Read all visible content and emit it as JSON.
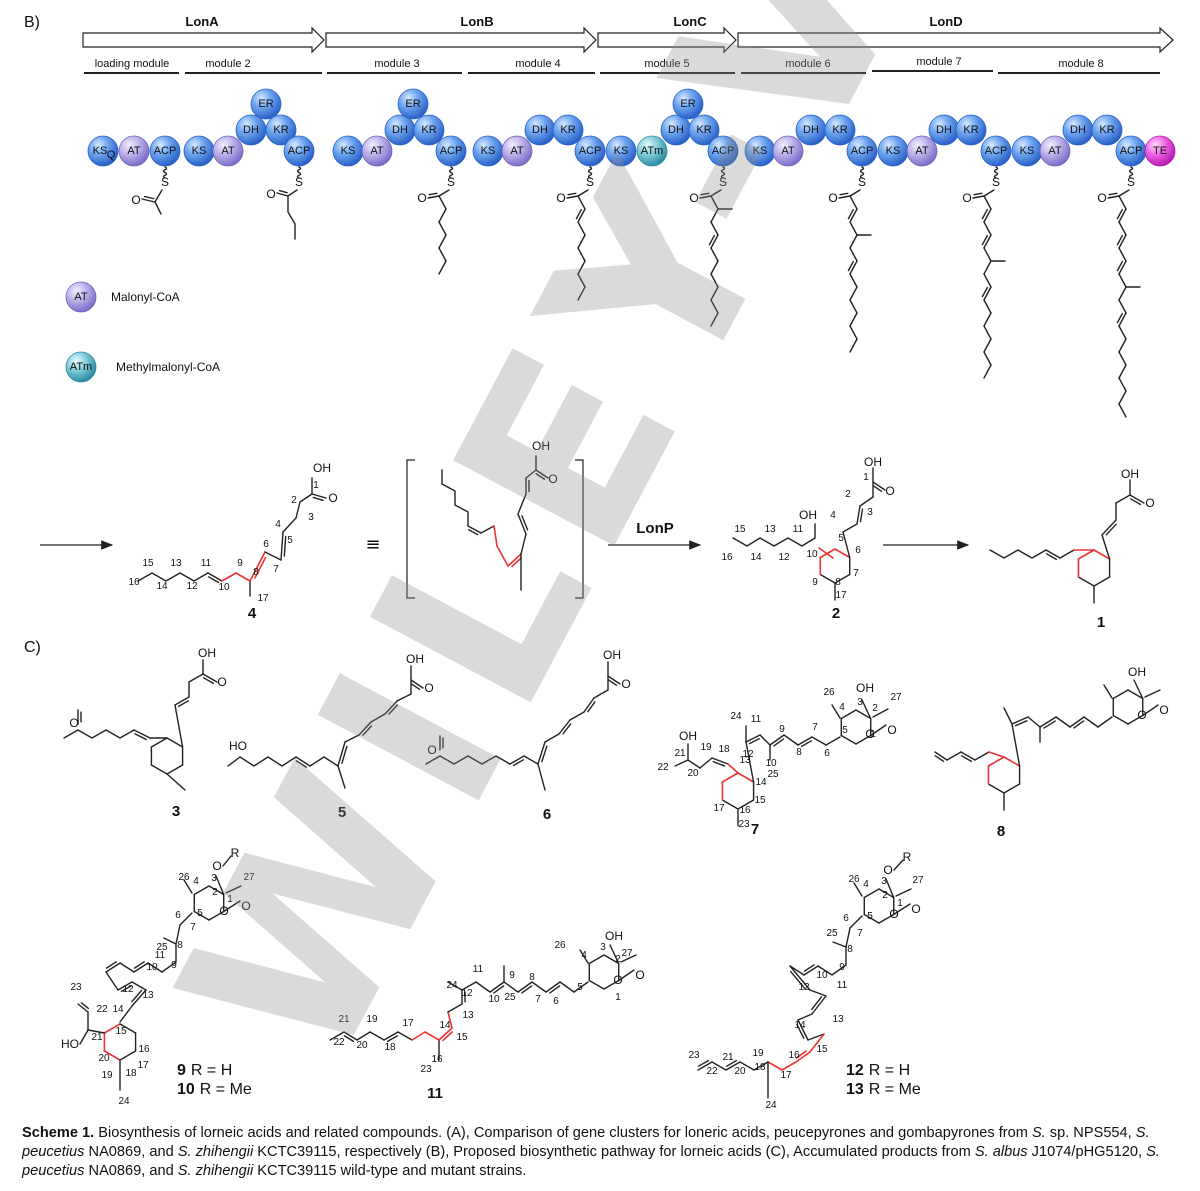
{
  "panels": {
    "b": "B)",
    "c": "C)"
  },
  "genes": [
    "LonA",
    "LonB",
    "LonC",
    "LonD"
  ],
  "modules": [
    "loading module",
    "module 2",
    "module 3",
    "module 4",
    "module 5",
    "module 6",
    "module 7",
    "module 8"
  ],
  "domain_labels": {
    "ks": "KS",
    "ks_sub": "Q",
    "at": "AT",
    "atm": "ATm",
    "acp": "ACP",
    "dh": "DH",
    "kr": "KR",
    "er": "ER",
    "te": "TE"
  },
  "legend": [
    {
      "badge": "AT",
      "text": "Malonyl-CoA",
      "color": "#a99be0"
    },
    {
      "badge": "ATm",
      "text": "Methylmalonyl-CoA",
      "color": "#5fb6c6"
    }
  ],
  "domain_colors": {
    "blue": "#3d7fe0",
    "purple": "#a99be0",
    "teal": "#5fb6c6",
    "magenta": "#e23fd8",
    "highlight": "#e33333"
  },
  "atoms": {
    "O": "O",
    "S": "S",
    "OH": "OH",
    "HO": "HO",
    "OR": "O",
    "R": "R"
  },
  "reagent": "LonP",
  "equiv": "≡",
  "compounds": {
    "c1": "1",
    "c2": "2",
    "c3": "3",
    "c4": "4",
    "c5": "5",
    "c6": "6",
    "c7": "7",
    "c8": "8",
    "c9": "9",
    "c10": "10",
    "c11": "11",
    "c12": "12",
    "c13": "13"
  },
  "r_groups": {
    "r9": "R = H",
    "r10": "R = Me",
    "r12": "R = H",
    "r13": "R = Me"
  },
  "caption": {
    "title": "Scheme 1.",
    "text_a": " Biosynthesis of lorneic acids and related compounds. (A), Comparison of gene clusters for loneric acids, peucepyrones and gombapyrones from ",
    "sp1": "S.",
    "text_b": " sp. NPS554, ",
    "sp2": "S. peucetius",
    "text_c": " NA0869, and ",
    "sp3": "S. zhihengii",
    "text_d": " KCTC39115, respectively (B), Proposed biosynthetic pathway for lorneic acids (C), Accumulated products from ",
    "sp4": "S. albus",
    "text_e": " J1074/pHG5120, ",
    "sp5": "S. peucetius",
    "text_f": " NA0869, and ",
    "sp6": "S. zhihengii",
    "text_g": " KCTC39115 wild-type and mutant strains."
  },
  "watermark": "WILEY-VCH"
}
